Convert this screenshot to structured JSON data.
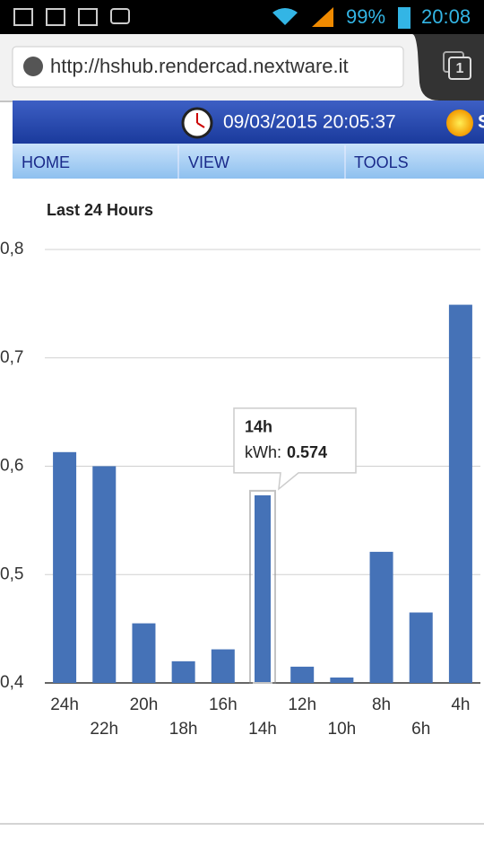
{
  "status_bar": {
    "battery": "99%",
    "time": "20:08"
  },
  "browser": {
    "url": "http://hshub.rendercad.nextware.it",
    "tab_count": "1"
  },
  "header": {
    "datetime": "09/03/2015 20:05:37",
    "trailing": "S"
  },
  "nav": [
    "HOME",
    "VIEW",
    "TOOLS"
  ],
  "chart_data": {
    "type": "bar",
    "title": "Last 24 Hours",
    "categories": [
      "24h",
      "22h",
      "20h",
      "18h",
      "16h",
      "14h",
      "12h",
      "10h",
      "8h",
      "6h",
      "4h"
    ],
    "values": [
      0.613,
      0.6,
      0.455,
      0.42,
      0.431,
      0.574,
      0.415,
      0.405,
      0.521,
      0.465,
      0.749
    ],
    "color": "#4572b7",
    "ylim": [
      0.4,
      0.8
    ],
    "yticks": [
      {
        "value": 0.4,
        "label": "0,4"
      },
      {
        "value": 0.5,
        "label": "0,5"
      },
      {
        "value": 0.6,
        "label": "0,6"
      },
      {
        "value": 0.7,
        "label": "0,7"
      },
      {
        "value": 0.8,
        "label": "0,8"
      }
    ],
    "grid": true,
    "highlight_index": 5,
    "tooltip": {
      "series_label": "kWh:"
    }
  }
}
